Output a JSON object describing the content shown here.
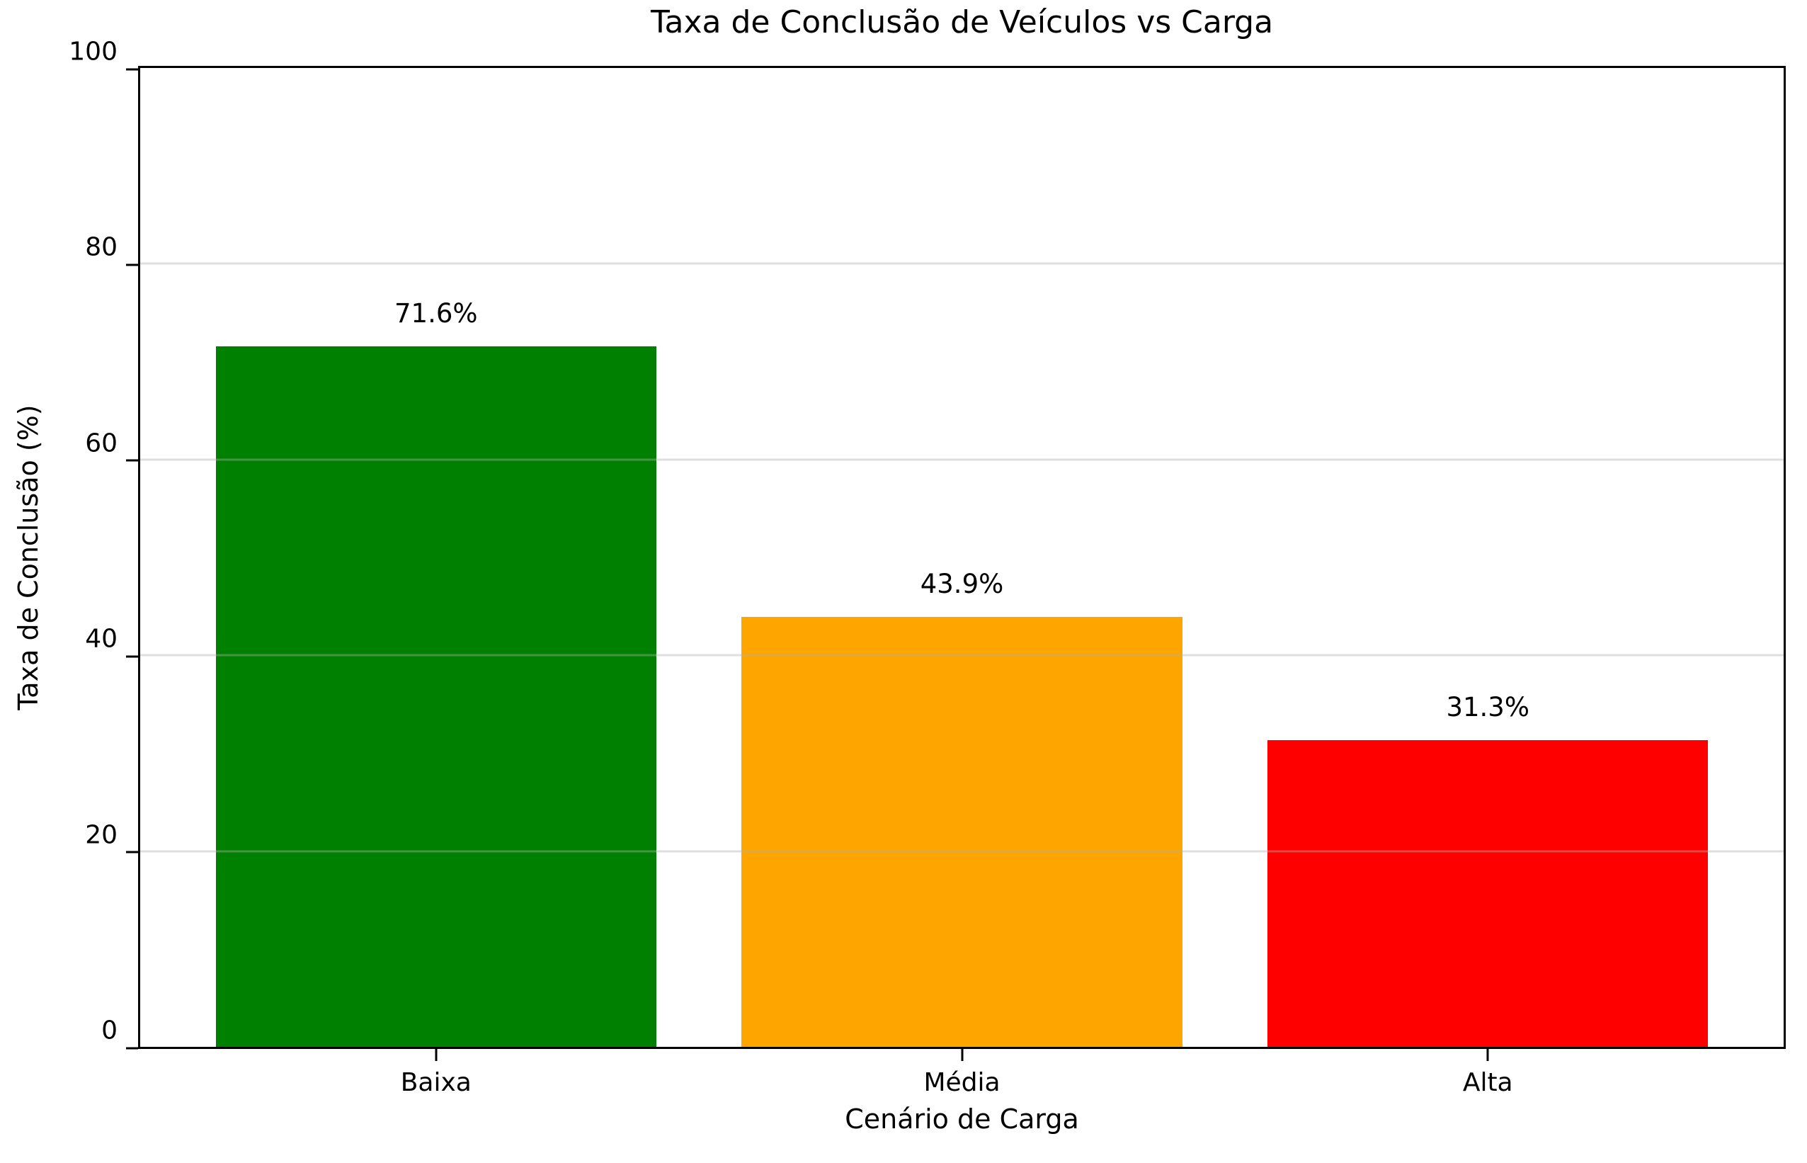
{
  "chart_data": {
    "type": "bar",
    "title": "Taxa de Conclusão de Veículos vs Carga",
    "xlabel": "Cenário de Carga",
    "ylabel": "Taxa de Conclusão (%)",
    "categories": [
      "Baixa",
      "Média",
      "Alta"
    ],
    "values": [
      71.6,
      43.9,
      31.3
    ],
    "bar_labels": [
      "71.6%",
      "43.9%",
      "31.3%"
    ],
    "bar_colors": [
      "#008000",
      "#FFA500",
      "#FF0000"
    ],
    "ylim": [
      0,
      100
    ],
    "yticks": [
      0,
      20,
      40,
      60,
      80,
      100
    ],
    "grid": "horizontal-above-bars",
    "gridline_color": "#b0b0b0",
    "axis_color": "#000000",
    "text_color": "#000000",
    "background": "#ffffff",
    "legend": "none"
  }
}
